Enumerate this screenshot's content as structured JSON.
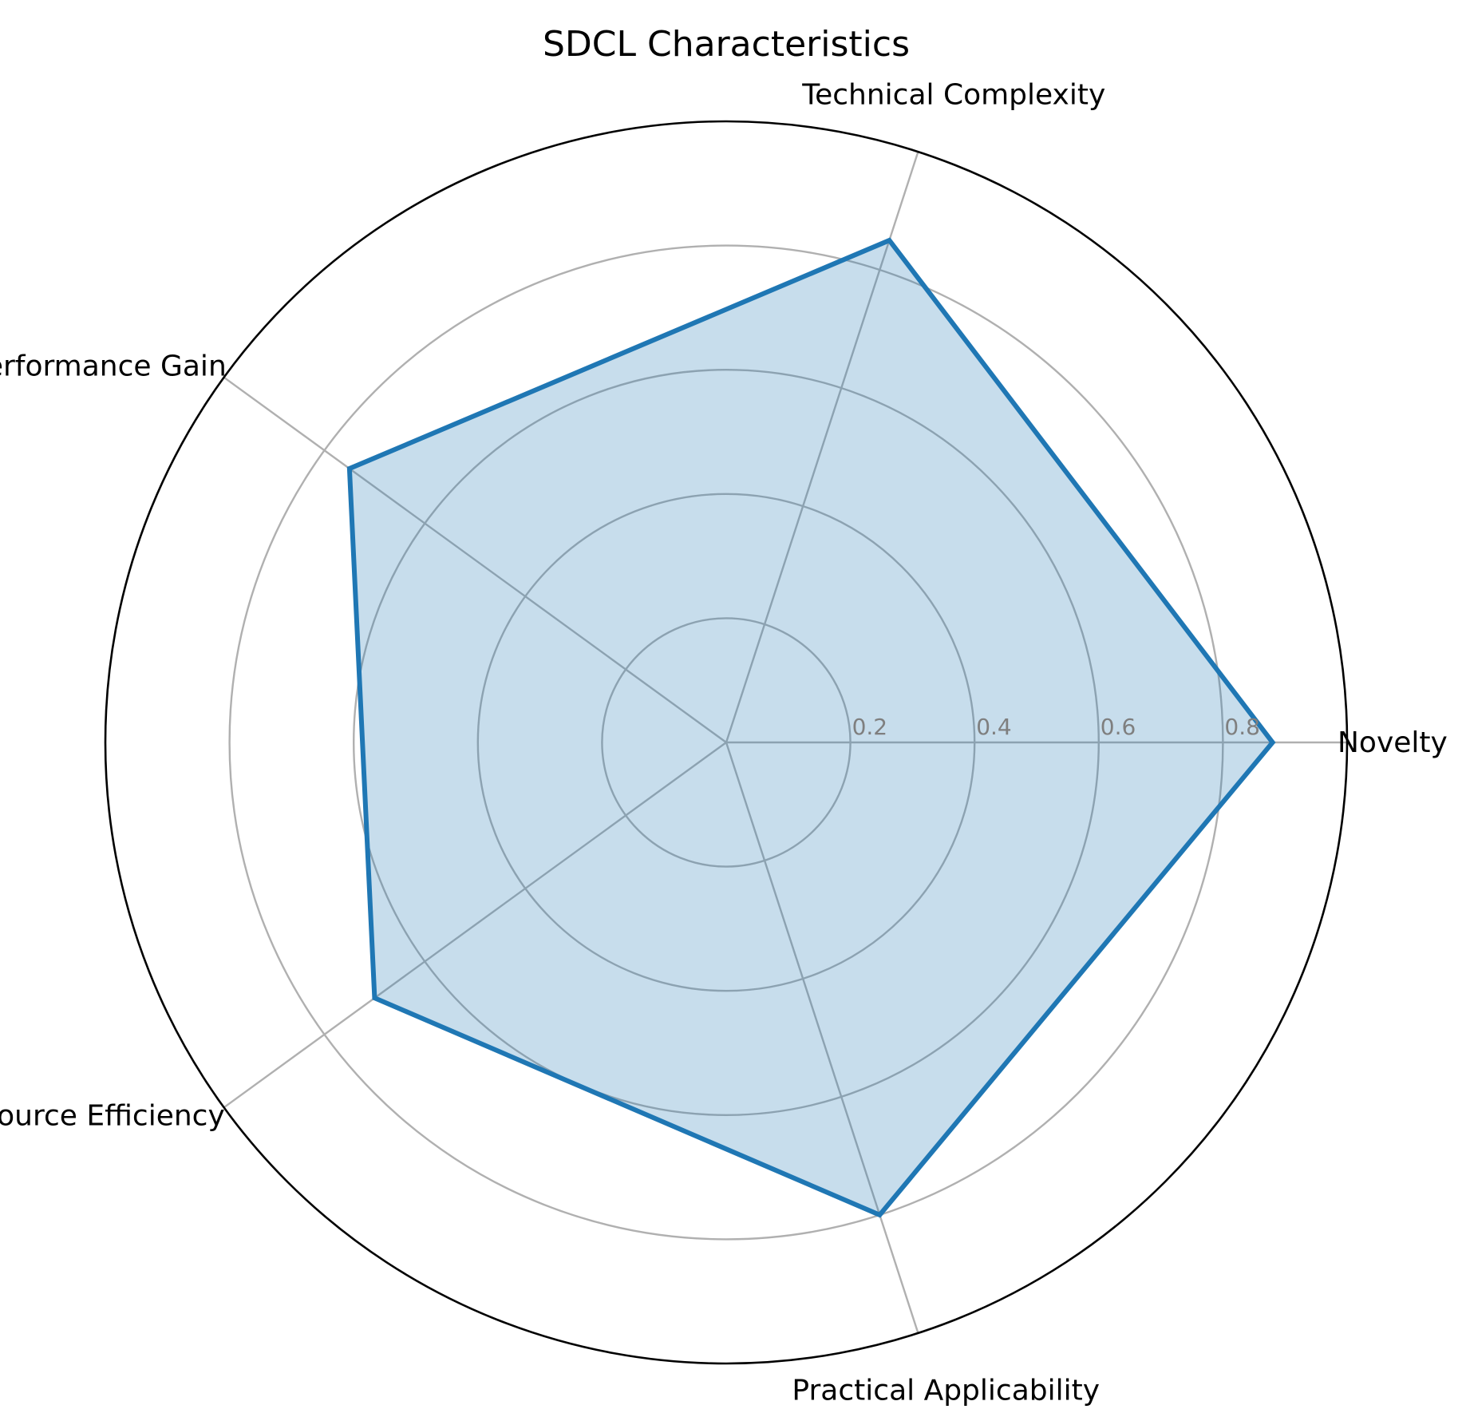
{
  "chart_data": {
    "type": "radar",
    "title": "SDCL Characteristics",
    "categories": [
      "Novelty",
      "Technical Complexity",
      "Performance Gain",
      "Resource Efficiency",
      "Practical Applicability"
    ],
    "series": [
      {
        "values": [
          0.88,
          0.85,
          0.75,
          0.7,
          0.8
        ],
        "color": "#1f77b4",
        "fill_opacity": 0.25
      }
    ],
    "rlim": [
      0,
      1.0
    ],
    "rticks": [
      0.2,
      0.4,
      0.6,
      0.8
    ],
    "rtick_labels": [
      "0.2",
      "0.4",
      "0.6",
      "0.8"
    ],
    "grid": true,
    "start_angle_deg": 0,
    "direction": "counterclockwise"
  }
}
